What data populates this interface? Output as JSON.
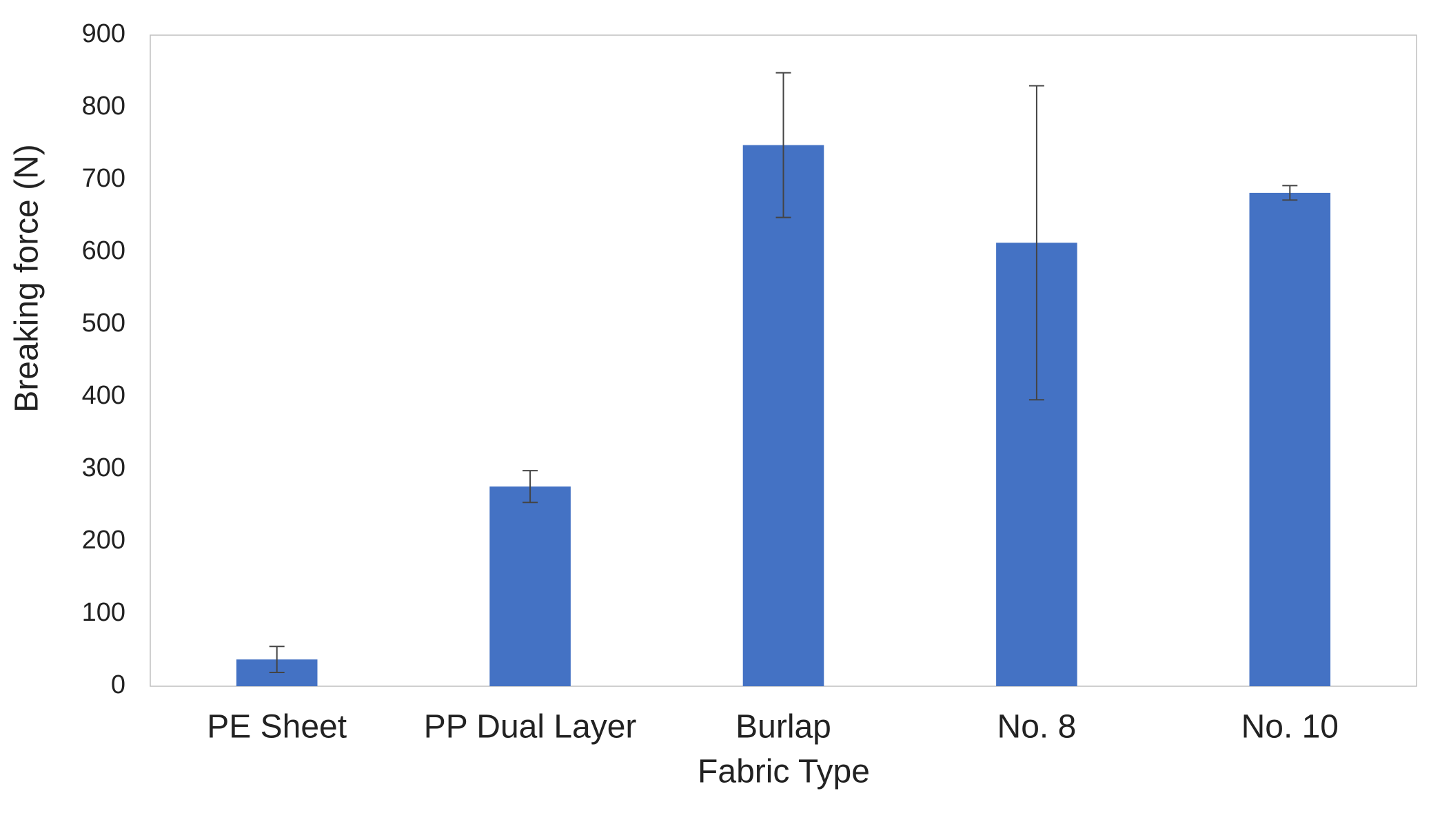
{
  "chart_data": {
    "type": "bar",
    "x_label": "Fabric Type",
    "y_label": "Breaking force (N)",
    "categories": [
      "PE Sheet",
      "PP Dual Layer",
      "Burlap",
      "No. 8",
      "No. 10"
    ],
    "values": [
      37,
      276,
      748,
      613,
      682
    ],
    "errors": [
      18,
      22,
      100,
      217,
      10
    ],
    "color": "#4472c4",
    "ylim": [
      0,
      900
    ],
    "yticks": [
      0,
      100,
      200,
      300,
      400,
      500,
      600,
      700,
      800,
      900
    ],
    "grid": false
  }
}
